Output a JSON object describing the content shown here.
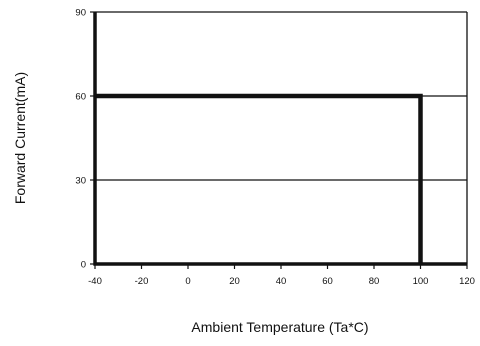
{
  "chart_data": {
    "type": "line",
    "title": "",
    "xlabel": "Ambient Temperature (Ta*C)",
    "ylabel": "Forward Current(mA)",
    "xlim": [
      -40,
      120
    ],
    "ylim": [
      0,
      90
    ],
    "x_ticks": [
      -40,
      -20,
      0,
      20,
      40,
      60,
      80,
      100,
      120
    ],
    "y_ticks": [
      0,
      30,
      60,
      90
    ],
    "x_tick_labels": [
      "-40",
      "-20",
      "0",
      "20",
      "40",
      "60",
      "80",
      "100",
      "120"
    ],
    "y_tick_labels": [
      "0",
      "30",
      "60",
      "90"
    ],
    "grid": "horizontal at 30 and 60",
    "legend": "none",
    "series": [
      {
        "x": [
          -40,
          100,
          100
        ],
        "y": [
          60,
          60,
          0
        ]
      }
    ]
  }
}
